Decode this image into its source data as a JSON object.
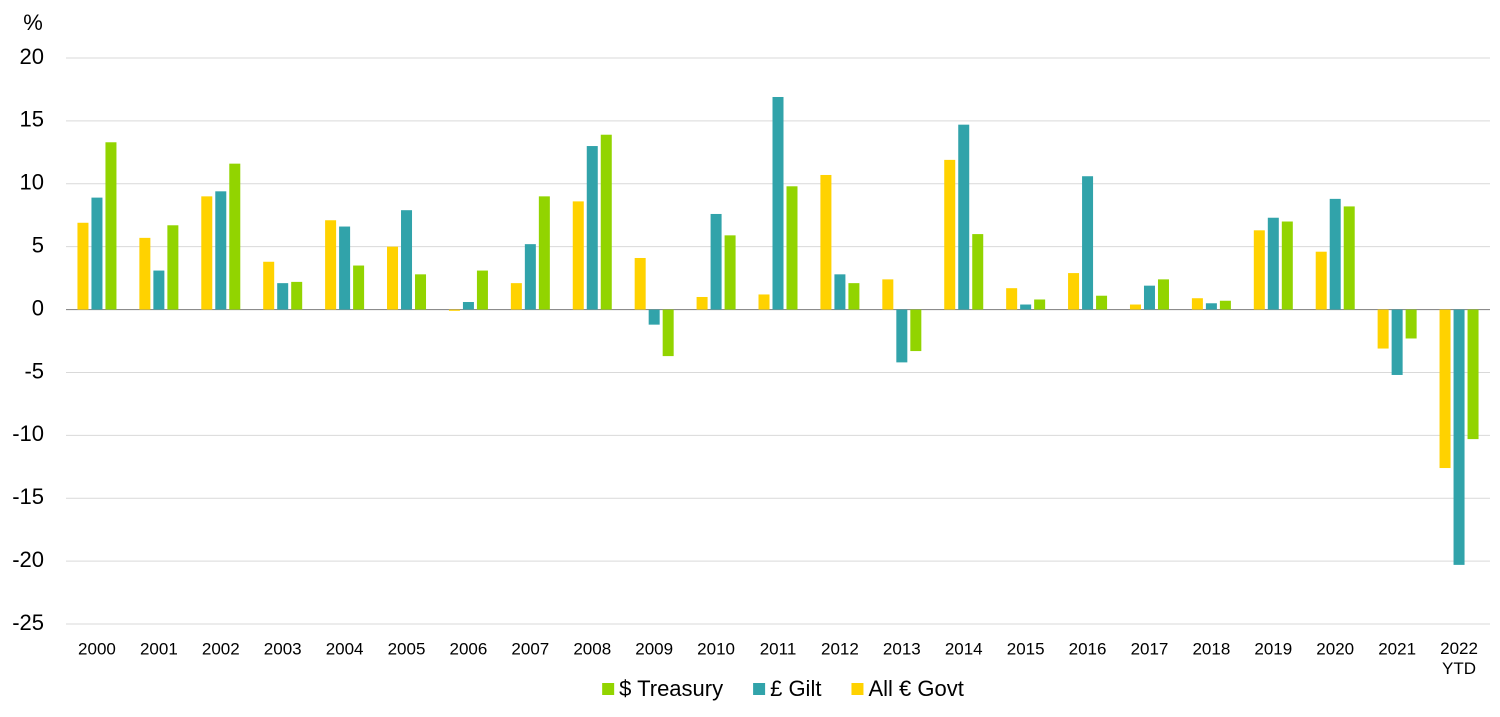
{
  "chart_data": {
    "type": "bar",
    "y_axis_label": "%",
    "categories": [
      "2000",
      "2001",
      "2002",
      "2003",
      "2004",
      "2005",
      "2006",
      "2007",
      "2008",
      "2009",
      "2010",
      "2011",
      "2012",
      "2013",
      "2014",
      "2015",
      "2016",
      "2017",
      "2018",
      "2019",
      "2020",
      "2021",
      "2022\nYTD"
    ],
    "series": [
      {
        "name": "$ Treasury",
        "color": "#92d400",
        "values": [
          13.3,
          6.7,
          11.6,
          2.2,
          3.5,
          2.8,
          3.1,
          9.0,
          13.9,
          -3.7,
          5.9,
          9.8,
          2.1,
          -3.3,
          6.0,
          0.8,
          1.1,
          2.4,
          0.7,
          7.0,
          8.2,
          -2.3,
          -10.3
        ]
      },
      {
        "name": "£ Gilt",
        "color": "#31a3aa",
        "values": [
          8.9,
          3.1,
          9.4,
          2.1,
          6.6,
          7.9,
          0.6,
          5.2,
          13.0,
          -1.2,
          7.6,
          16.9,
          2.8,
          -4.2,
          14.7,
          0.4,
          10.6,
          1.9,
          0.5,
          7.3,
          8.8,
          -5.2,
          -20.3
        ]
      },
      {
        "name": "All € Govt",
        "color": "#ffd200",
        "values": [
          6.9,
          5.7,
          9.0,
          3.8,
          7.1,
          5.0,
          -0.1,
          2.1,
          8.6,
          4.1,
          1.0,
          1.2,
          10.7,
          2.4,
          11.9,
          1.7,
          2.9,
          0.4,
          0.9,
          6.3,
          4.6,
          -3.1,
          -12.6
        ]
      }
    ],
    "ylim": [
      -25,
      20
    ],
    "yticks": [
      -25,
      -20,
      -15,
      -10,
      -5,
      0,
      5,
      10,
      15,
      20
    ],
    "grid": true,
    "legend": "bottom"
  }
}
